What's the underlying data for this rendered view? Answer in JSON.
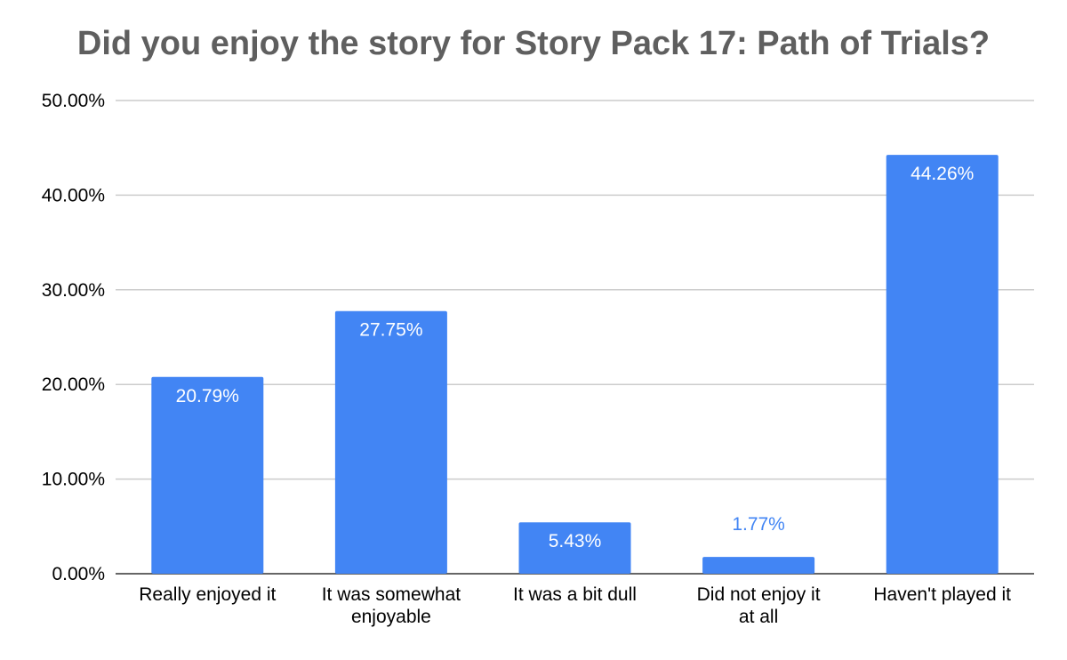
{
  "chart_data": {
    "type": "bar",
    "title": "Did you enjoy the story for Story Pack 17: Path of Trials?",
    "categories": [
      [
        "Really enjoyed it"
      ],
      [
        "It was somewhat",
        "enjoyable"
      ],
      [
        "It was a bit dull"
      ],
      [
        "Did not enjoy it",
        "at all"
      ],
      [
        "Haven't played it"
      ]
    ],
    "values": [
      20.79,
      27.75,
      5.43,
      1.77,
      44.26
    ],
    "data_labels": [
      "20.79%",
      "27.75%",
      "5.43%",
      "1.77%",
      "44.26%"
    ],
    "y_ticks": [
      "0.00%",
      "10.00%",
      "20.00%",
      "30.00%",
      "40.00%",
      "50.00%"
    ],
    "ylim": [
      0,
      50
    ],
    "ystep": 10,
    "grid": true,
    "legend": "none",
    "xlabel": "",
    "ylabel": "",
    "colors": {
      "bar": "#4285f4",
      "label_inside": "#ffffff",
      "label_outside": "#4285f4",
      "gridline": "#cccccc",
      "axis": "#333333",
      "title": "#5f5f5f"
    }
  }
}
